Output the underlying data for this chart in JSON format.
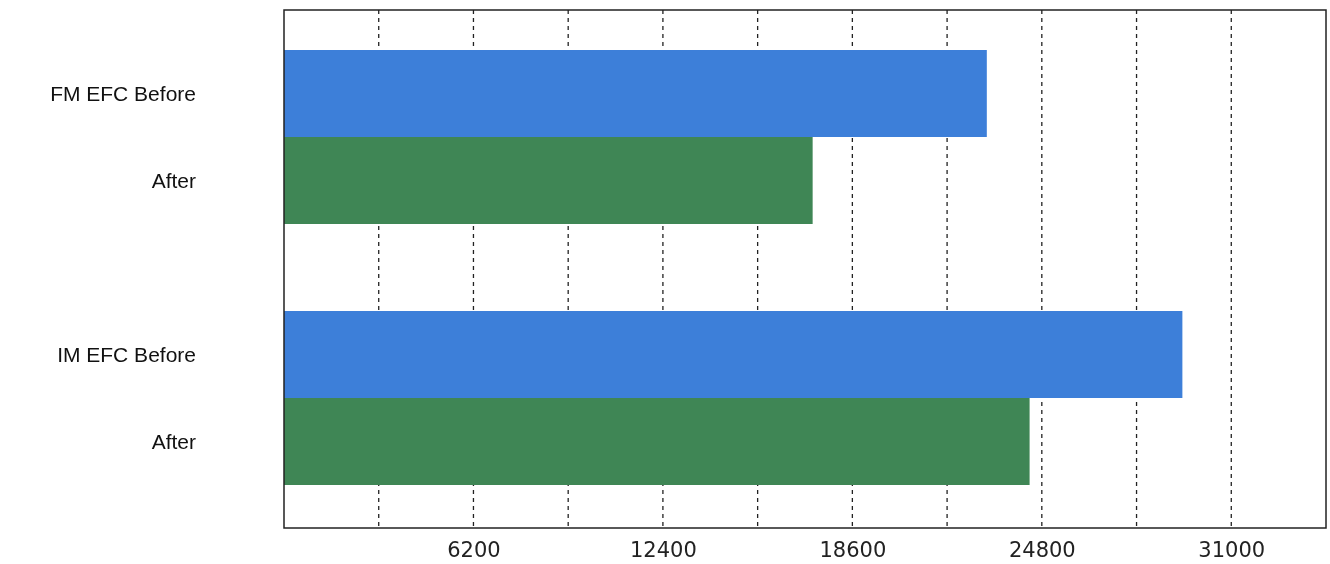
{
  "chart_data": {
    "type": "bar",
    "orientation": "horizontal",
    "categories": [
      "FM EFC Before",
      "After",
      null,
      "IM EFC Before",
      "After"
    ],
    "values": [
      23000,
      17300,
      null,
      29400,
      24400
    ],
    "colors": [
      "#3d7fd9",
      "#3f8655",
      null,
      "#3d7fd9",
      "#3f8655"
    ],
    "xlim": [
      0,
      34100
    ],
    "xticks": [
      {
        "value": 3100,
        "label": null
      },
      6200,
      {
        "value": 9300,
        "label": null
      },
      12400,
      {
        "value": 15500,
        "label": null
      },
      18600,
      {
        "value": 21700,
        "label": null
      },
      24800,
      {
        "value": 27900,
        "label": null
      },
      31000
    ],
    "grid": "x"
  }
}
